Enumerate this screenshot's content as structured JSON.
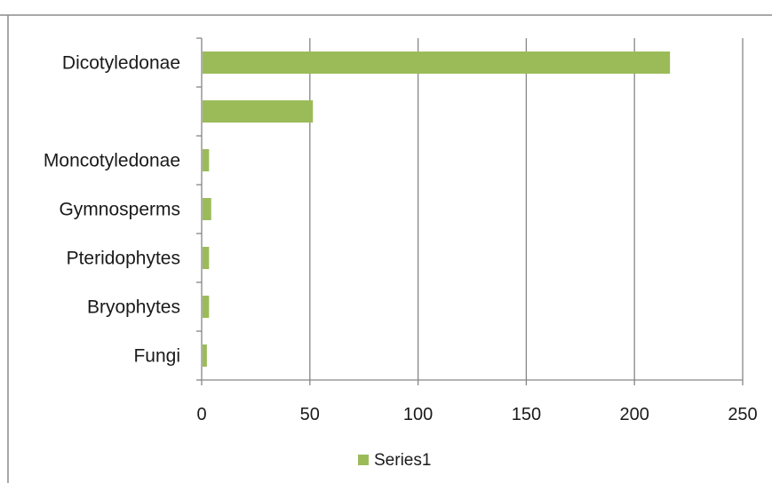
{
  "chart_data": {
    "type": "bar",
    "orientation": "horizontal",
    "categories": [
      "Fungi",
      "Bryophytes",
      "Pteridophytes",
      "Gymnosperms",
      "Moncotyledonae",
      "",
      "Dicotyledonae"
    ],
    "series": [
      {
        "name": "Series1",
        "values": [
          2,
          3,
          3,
          4,
          3,
          51,
          216
        ]
      }
    ],
    "xlim": [
      0,
      250
    ],
    "x_ticks": [
      "0",
      "50",
      "100",
      "150",
      "200",
      "250"
    ],
    "grid": true,
    "legend": "bottom",
    "colors": {
      "bar": "#9bbb59",
      "grid": "#868686",
      "frame": "#8c8c8c"
    }
  }
}
